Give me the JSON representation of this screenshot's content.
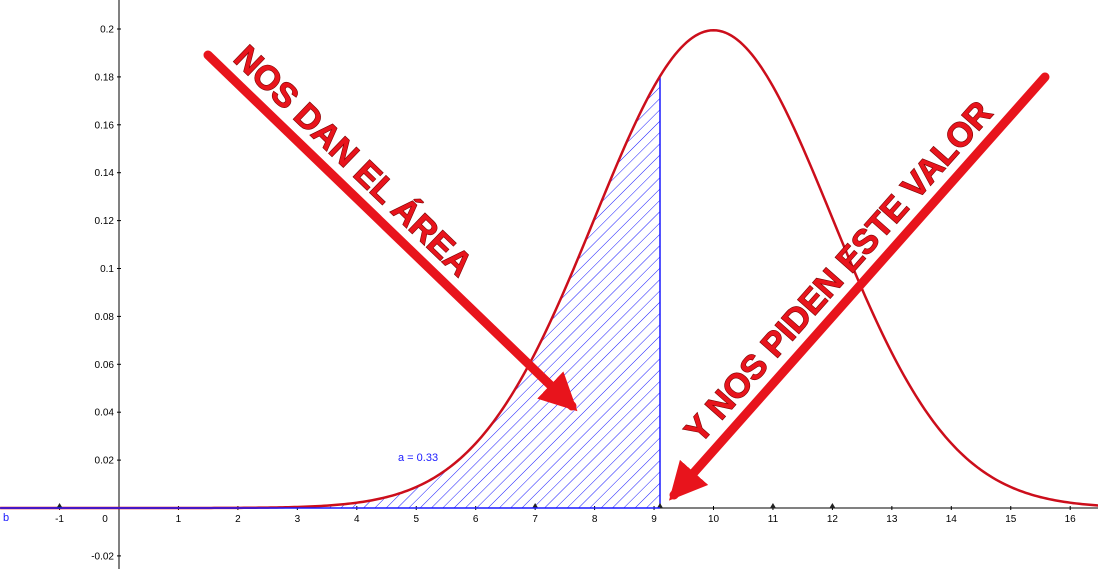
{
  "chart_data": {
    "type": "area",
    "title": "",
    "xlabel": "",
    "ylabel": "",
    "xlim": [
      -2,
      16.6
    ],
    "ylim": [
      -0.025,
      0.21
    ],
    "x_ticks": [
      -1,
      0,
      1,
      2,
      3,
      4,
      5,
      6,
      7,
      8,
      9,
      10,
      11,
      12,
      13,
      14,
      15,
      16
    ],
    "y_ticks": [
      -0.02,
      0.02,
      0.04,
      0.06,
      0.08,
      0.1,
      0.12,
      0.14,
      0.16,
      0.18,
      0.2
    ],
    "x_tick_labels": [
      "-1",
      "0",
      "1",
      "2",
      "3",
      "4",
      "5",
      "6",
      "7",
      "8",
      "9",
      "10",
      "11",
      "12",
      "13",
      "14",
      "15",
      "16"
    ],
    "y_tick_labels": [
      "-0.02",
      "0.02",
      "0.04",
      "0.06",
      "0.08",
      "0.1",
      "0.12",
      "0.14",
      "0.16",
      "0.18",
      "0.2"
    ],
    "origin_label": "0",
    "series": [
      {
        "type": "normal_density",
        "mean": 10,
        "sd": 2,
        "color": "#cc0e1b"
      }
    ],
    "shaded_region": {
      "from": -2,
      "to": 9.1,
      "color": "#1a1aff",
      "fill": "hatch"
    },
    "area_label": "a = 0.33",
    "axis_points": [
      -1,
      7,
      9.1,
      11,
      12
    ],
    "grid": false
  },
  "annotations": {
    "left_arrow_text": "NOS DAN EL ÁREA",
    "right_arrow_text": "Y NOS PIDEN ESTE VALOR",
    "arrow_color": "#e8141c",
    "corner_label": "b"
  }
}
